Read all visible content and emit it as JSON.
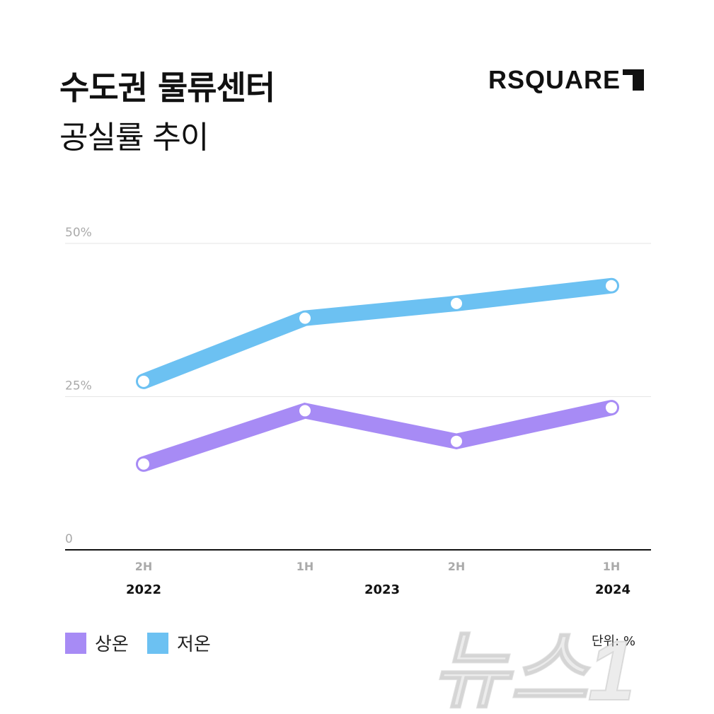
{
  "header": {
    "title": "수도권 물류센터",
    "subtitle": "공실률 추이",
    "logo": "RSQUARE"
  },
  "chart_data": {
    "type": "line",
    "categories": [
      [
        "2H",
        "2022"
      ],
      [
        "1H",
        "2023"
      ],
      [
        "2H",
        "2023"
      ],
      [
        "1H",
        "2024"
      ]
    ],
    "period_labels": [
      "2H",
      "1H",
      "2H",
      "1H"
    ],
    "year_labels": [
      "2022",
      "2023",
      "2024"
    ],
    "series": [
      {
        "name": "상온",
        "color": "#a78bf5",
        "values": [
          14.0,
          22.7,
          17.7,
          23.2
        ]
      },
      {
        "name": "저온",
        "color": "#6cc1f2",
        "values": [
          27.5,
          37.8,
          40.2,
          43.1
        ]
      }
    ],
    "ylim": [
      0,
      50
    ],
    "yticks": [
      "0",
      "25%",
      "50%"
    ],
    "grid": true,
    "legend_position": "bottom-left",
    "unit_label": "단위: %"
  },
  "watermark": "뉴스1"
}
